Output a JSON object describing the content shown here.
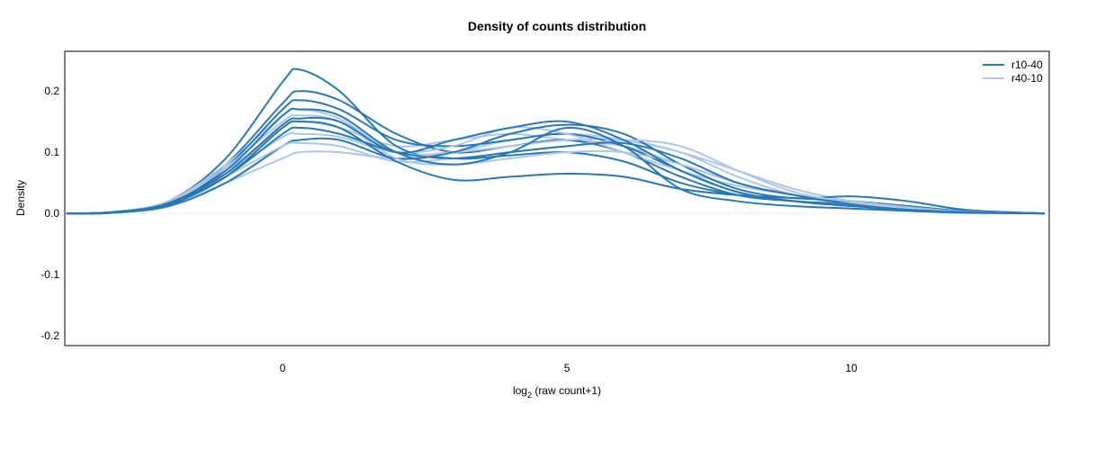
{
  "chart_data": {
    "type": "line",
    "title": "Density of counts distribution",
    "xlabel": "log2 (raw count+1)",
    "xlabel_parts": {
      "main": "log",
      "sub": "2",
      "rest": " (raw count+1)"
    },
    "ylabel": "Density",
    "xlim": [
      -3.83,
      13.48
    ],
    "ylim": [
      -0.216,
      0.265
    ],
    "xticks": [
      0,
      5,
      10
    ],
    "yticks": [
      -0.2,
      -0.1,
      0.0,
      0.1,
      0.2
    ],
    "ytick_labels": [
      "-0.2",
      "-0.1",
      "0.0",
      "0.1",
      "0.2"
    ],
    "xtick_labels": [
      "0",
      "5",
      "10"
    ],
    "grid": false,
    "legend_position": "top-right",
    "x": [
      -3.8,
      -3,
      -2,
      -1,
      0,
      0.3,
      1,
      2,
      3,
      4,
      5,
      6,
      7,
      8,
      9,
      10,
      11,
      12,
      13.4
    ],
    "series": [
      {
        "name": "r10-40",
        "color": "#2878b5",
        "curves": [
          [
            0,
            0.002,
            0.02,
            0.09,
            0.215,
            0.235,
            0.2,
            0.11,
            0.09,
            0.095,
            0.1,
            0.085,
            0.05,
            0.03,
            0.02,
            0.015,
            0.008,
            0.003,
            0
          ],
          [
            0,
            0.002,
            0.02,
            0.08,
            0.18,
            0.2,
            0.185,
            0.13,
            0.1,
            0.11,
            0.12,
            0.1,
            0.06,
            0.03,
            0.02,
            0.015,
            0.01,
            0.004,
            0
          ],
          [
            0,
            0.002,
            0.018,
            0.075,
            0.17,
            0.185,
            0.17,
            0.12,
            0.11,
            0.12,
            0.13,
            0.11,
            0.07,
            0.035,
            0.02,
            0.012,
            0.006,
            0.002,
            0
          ],
          [
            0,
            0.001,
            0.012,
            0.05,
            0.11,
            0.12,
            0.12,
            0.09,
            0.1,
            0.13,
            0.145,
            0.13,
            0.08,
            0.04,
            0.025,
            0.028,
            0.02,
            0.006,
            0
          ],
          [
            0,
            0.002,
            0.015,
            0.06,
            0.14,
            0.15,
            0.14,
            0.085,
            0.055,
            0.06,
            0.065,
            0.06,
            0.04,
            0.03,
            0.025,
            0.02,
            0.012,
            0.004,
            0
          ],
          [
            0,
            0.002,
            0.016,
            0.065,
            0.145,
            0.155,
            0.15,
            0.1,
            0.12,
            0.14,
            0.15,
            0.12,
            0.07,
            0.035,
            0.02,
            0.012,
            0.006,
            0.002,
            0
          ],
          [
            0,
            0.001,
            0.014,
            0.06,
            0.13,
            0.14,
            0.13,
            0.1,
            0.09,
            0.1,
            0.11,
            0.115,
            0.09,
            0.05,
            0.03,
            0.015,
            0.006,
            0.002,
            0
          ],
          [
            0,
            0.002,
            0.017,
            0.07,
            0.16,
            0.17,
            0.16,
            0.1,
            0.08,
            0.1,
            0.14,
            0.11,
            0.04,
            0.02,
            0.012,
            0.008,
            0.004,
            0.001,
            0
          ]
        ]
      },
      {
        "name": "r40-10",
        "color": "#aec7e8",
        "curves": [
          [
            0,
            0.002,
            0.018,
            0.07,
            0.14,
            0.15,
            0.14,
            0.11,
            0.12,
            0.13,
            0.12,
            0.11,
            0.08,
            0.05,
            0.03,
            0.02,
            0.01,
            0.004,
            0
          ],
          [
            0,
            0.001,
            0.012,
            0.05,
            0.09,
            0.1,
            0.1,
            0.09,
            0.1,
            0.12,
            0.13,
            0.12,
            0.1,
            0.07,
            0.04,
            0.02,
            0.01,
            0.003,
            0
          ],
          [
            0,
            0.002,
            0.02,
            0.08,
            0.16,
            0.17,
            0.155,
            0.1,
            0.1,
            0.11,
            0.12,
            0.12,
            0.1,
            0.06,
            0.03,
            0.015,
            0.006,
            0.002,
            0
          ],
          [
            0,
            0.002,
            0.016,
            0.065,
            0.125,
            0.13,
            0.125,
            0.1,
            0.11,
            0.14,
            0.13,
            0.1,
            0.07,
            0.045,
            0.03,
            0.018,
            0.008,
            0.002,
            0
          ],
          [
            0,
            0.001,
            0.015,
            0.06,
            0.11,
            0.115,
            0.11,
            0.085,
            0.09,
            0.1,
            0.11,
            0.12,
            0.11,
            0.07,
            0.035,
            0.018,
            0.008,
            0.002,
            0
          ],
          [
            0,
            0.002,
            0.018,
            0.075,
            0.15,
            0.16,
            0.15,
            0.09,
            0.08,
            0.09,
            0.1,
            0.1,
            0.08,
            0.05,
            0.03,
            0.02,
            0.01,
            0.003,
            0
          ]
        ]
      }
    ]
  }
}
